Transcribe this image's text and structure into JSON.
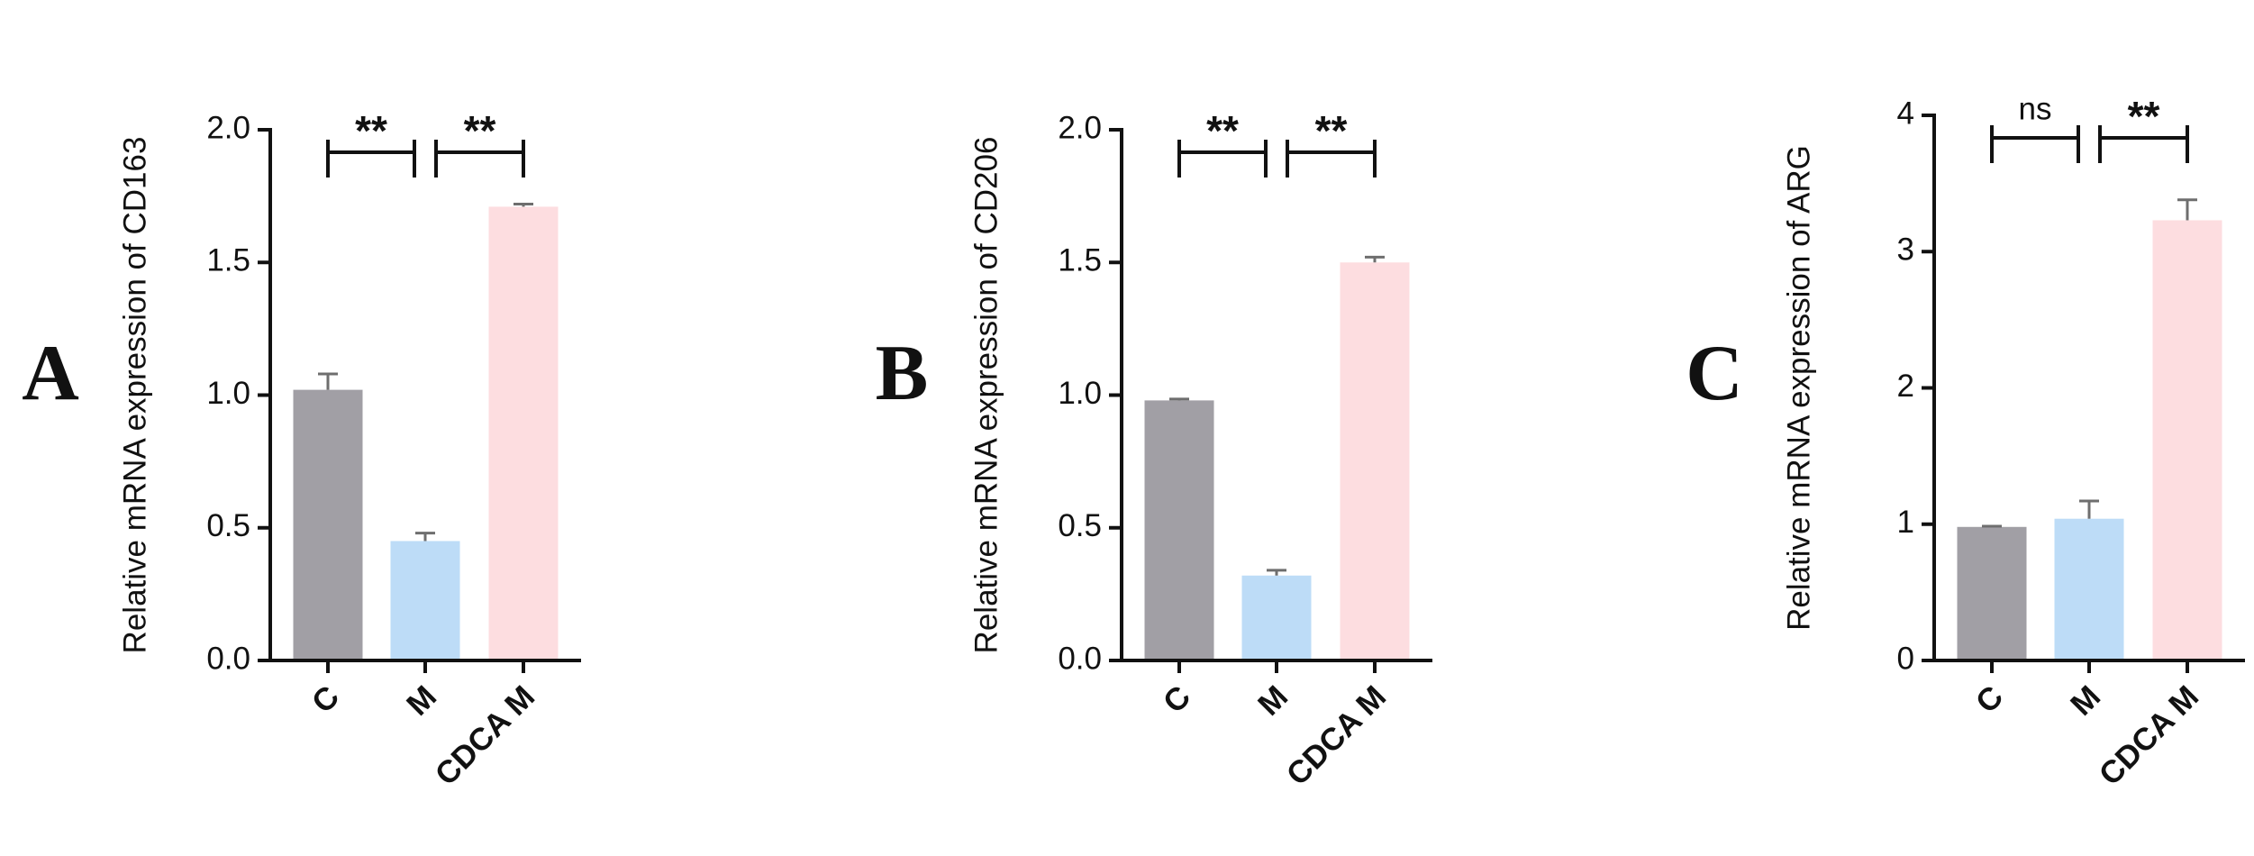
{
  "chart_data": [
    {
      "type": "bar",
      "panel_label": "A",
      "y_label": "Relative mRNA expression of CD163",
      "categories": [
        "C",
        "M",
        "CDCA M"
      ],
      "values": [
        1.02,
        0.45,
        1.71
      ],
      "errors": [
        0.06,
        0.03,
        0.01
      ],
      "colors": [
        "#a19fa5",
        "#bddcf7",
        "#fddde0"
      ],
      "ylim": [
        0,
        2
      ],
      "yticks": [
        {
          "value": 0,
          "label": "0.0"
        },
        0.5,
        {
          "value": 1,
          "label": "1.0"
        },
        1.5,
        {
          "value": 2,
          "label": "2.0"
        }
      ],
      "significance": [
        "**",
        "**"
      ]
    },
    {
      "type": "bar",
      "panel_label": "B",
      "y_label": "Relative mRNA expression of CD206",
      "categories": [
        "C",
        "M",
        "CDCA M"
      ],
      "values": [
        0.98,
        0.32,
        1.5
      ],
      "errors": [
        0.005,
        0.02,
        0.02
      ],
      "colors": [
        "#a19fa5",
        "#bddcf7",
        "#fddde0"
      ],
      "ylim": [
        0,
        2
      ],
      "yticks": [
        {
          "value": 0,
          "label": "0.0"
        },
        0.5,
        {
          "value": 1,
          "label": "1.0"
        },
        1.5,
        {
          "value": 2,
          "label": "2.0"
        }
      ],
      "significance": [
        "**",
        "**"
      ]
    },
    {
      "type": "bar",
      "panel_label": "C",
      "y_label": "Relative mRNA expression of ARG",
      "categories": [
        "C",
        "M",
        "CDCA M"
      ],
      "values": [
        0.98,
        1.04,
        3.23
      ],
      "errors": [
        0.005,
        0.13,
        0.15
      ],
      "colors": [
        "#a19fa5",
        "#bddcf7",
        "#fddde0"
      ],
      "ylim": [
        0,
        4
      ],
      "yticks": [
        0,
        1,
        2,
        3,
        4
      ],
      "significance": [
        "ns",
        "**"
      ]
    }
  ]
}
